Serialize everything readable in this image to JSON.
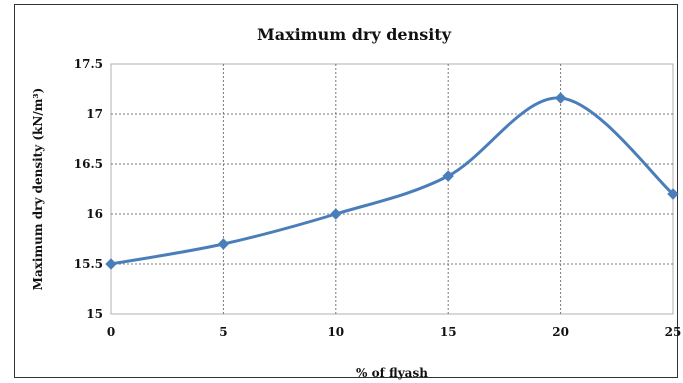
{
  "chart_data": {
    "type": "line",
    "title": "Maximum dry density",
    "xlabel": "% of flyash",
    "ylabel": "Maximum dry density (kN/m³)",
    "x": [
      0,
      5,
      10,
      15,
      20,
      25
    ],
    "series": [
      {
        "values": [
          15.5,
          15.7,
          16.0,
          16.38,
          17.16,
          16.2
        ],
        "color": "#4a7ebb",
        "marker": "diamond",
        "smooth": true
      }
    ],
    "xlim": [
      0,
      25
    ],
    "ylim": [
      15,
      17.5
    ],
    "xticks": [
      0,
      5,
      10,
      15,
      20,
      25
    ],
    "yticks": [
      15,
      15.5,
      16,
      16.5,
      17,
      17.5
    ],
    "xtick_labels": [
      "0",
      "5",
      "10",
      "15",
      "20",
      "25"
    ],
    "ytick_labels": [
      "15",
      "15.5",
      "16",
      "16.5",
      "17",
      "17.5"
    ],
    "grid": true,
    "grid_style": "dotted",
    "legend": "none"
  }
}
